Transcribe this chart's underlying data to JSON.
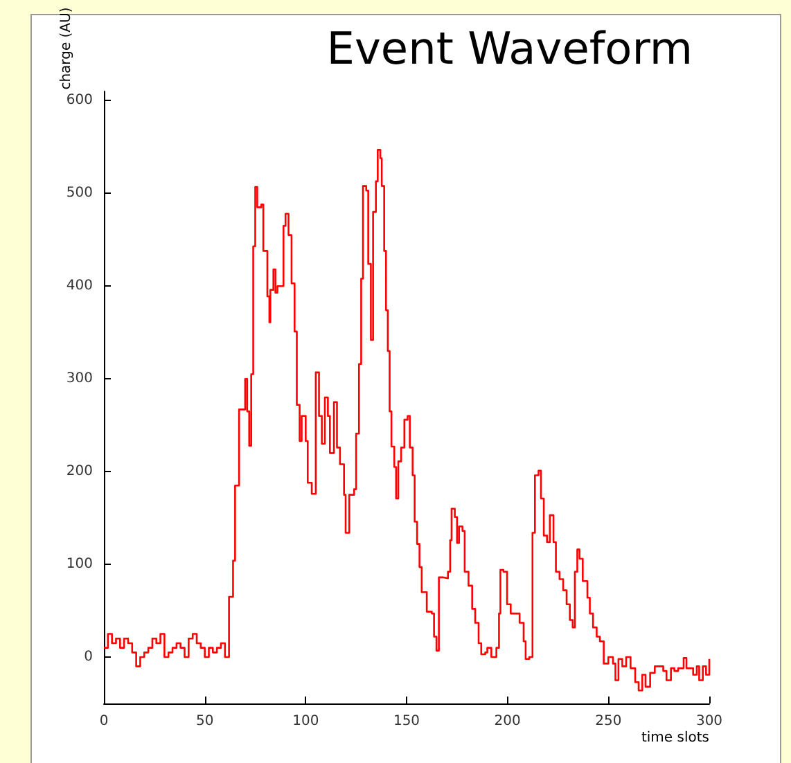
{
  "chart_data": {
    "type": "step",
    "title": "Event Waveform",
    "xlabel": "time slots",
    "ylabel": "charge (AU)",
    "x": [
      0,
      2,
      4,
      6,
      8,
      10,
      12,
      14,
      16,
      18,
      20,
      22,
      24,
      26,
      28,
      30,
      32,
      34,
      36,
      38,
      40,
      42,
      44,
      46,
      48,
      50,
      52,
      54,
      56,
      58,
      60,
      62,
      64,
      65,
      67,
      70,
      71,
      72,
      73,
      74,
      75,
      76,
      78,
      79,
      81,
      82,
      82.5,
      84,
      85,
      86,
      89,
      90,
      91.5,
      93,
      94.5,
      95.6,
      97,
      98,
      100,
      101,
      103,
      105,
      106.6,
      108,
      109.5,
      111,
      112,
      114,
      115.5,
      117,
      119,
      119.8,
      121.6,
      124,
      125,
      126.4,
      127.5,
      128.4,
      130,
      131,
      132.3,
      133.4,
      134.8,
      135.7,
      137,
      137.7,
      138.9,
      139.8,
      140.7,
      141.6,
      142.5,
      143.9,
      144.8,
      145.9,
      147.3,
      148.9,
      150.5,
      151.6,
      153,
      154,
      155.2,
      156.4,
      157.5,
      160,
      162.5,
      163.6,
      164.8,
      166,
      168,
      170.5,
      171.6,
      172.3,
      173.9,
      175,
      176,
      177.7,
      178.8,
      180.7,
      182.5,
      184,
      185.7,
      187,
      189,
      190,
      192,
      194.5,
      195.8,
      196.5,
      198,
      199.8,
      201.6,
      203.9,
      206,
      208,
      209,
      210.8,
      212.4,
      213.6,
      215.4,
      216.6,
      218,
      219.6,
      221,
      222.8,
      224,
      225.8,
      227.6,
      229.3,
      230.9,
      232.3,
      233.4,
      234.6,
      235.7,
      237.3,
      239.6,
      240.8,
      242.4,
      244.2,
      245.8,
      247.7,
      250,
      252.3,
      253.5,
      255,
      256.9,
      258.8,
      261,
      263.3,
      265,
      266.8,
      268.4,
      270.7,
      273,
      275.3,
      277.2,
      278.8,
      281,
      282.7,
      284.6,
      287.3,
      288.7,
      290.6,
      292,
      293.8,
      295,
      296.8,
      298.4,
      300
    ],
    "series": [
      {
        "color": "#ff0000",
        "values": [
          10,
          25,
          15,
          20,
          10,
          20,
          15,
          5,
          -10,
          0,
          5,
          10,
          20,
          15,
          25,
          0,
          5,
          10,
          15,
          10,
          0,
          20,
          25,
          15,
          10,
          0,
          10,
          5,
          10,
          15,
          0,
          65,
          104,
          185,
          267,
          300,
          265,
          228,
          305,
          443,
          507,
          485,
          488,
          438,
          389,
          361,
          396,
          418,
          393,
          400,
          465,
          478,
          455,
          403,
          351,
          272,
          233,
          260,
          233,
          188,
          176,
          307,
          260,
          230,
          280,
          260,
          220,
          275,
          226,
          208,
          175,
          134,
          175,
          181,
          241,
          316,
          408,
          508,
          503,
          424,
          342,
          480,
          513,
          547,
          538,
          508,
          438,
          374,
          330,
          265,
          227,
          205,
          171,
          211,
          226,
          256,
          260,
          226,
          196,
          146,
          122,
          97,
          70,
          49,
          47,
          22,
          7,
          86,
          85,
          92,
          126,
          160,
          151,
          123,
          141,
          136,
          92,
          77,
          52,
          37,
          15,
          3,
          5,
          10,
          0,
          10,
          47,
          94,
          92,
          57,
          47,
          47,
          37,
          17,
          -2,
          0,
          134,
          196,
          201,
          171,
          131,
          124,
          153,
          124,
          92,
          84,
          72,
          57,
          40,
          32,
          92,
          116,
          106,
          82,
          64,
          47,
          32,
          22,
          17,
          -7,
          0,
          -7,
          -25,
          -2,
          -10,
          0,
          -12,
          -27,
          -36,
          -19,
          -32,
          -17,
          -10,
          -10,
          -15,
          -25,
          -12,
          -15,
          -12,
          -1,
          -12,
          -12,
          -19,
          -10,
          -25,
          -10,
          -19,
          -2
        ]
      }
    ],
    "xlim": [
      0,
      300
    ],
    "xticks": [
      0,
      50,
      100,
      150,
      200,
      250,
      300
    ],
    "ylim": [
      -50,
      610
    ],
    "yticks": [
      0,
      100,
      200,
      300,
      400,
      500,
      600
    ],
    "grid": false,
    "marker": "none",
    "line_style": "solid"
  }
}
